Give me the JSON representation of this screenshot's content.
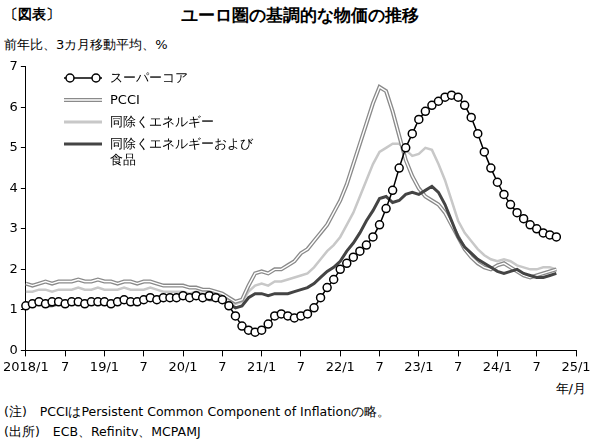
{
  "chart_data": {
    "type": "line",
    "figure_label": "〔図表〕",
    "title": "ユーロ圏の基調的な物価の推移",
    "y_label": "前年比、3カ月移動平均、%",
    "x_label": "年/月",
    "notes": [
      "(注)　PCCIはPersistent Common Component of Inflationの略。",
      "(出所)　ECB、Refinitv、MCPAMJ"
    ],
    "categories": [
      "2018/1",
      null,
      null,
      null,
      null,
      null,
      "7",
      null,
      null,
      null,
      null,
      null,
      "19/1",
      null,
      null,
      null,
      null,
      null,
      "7",
      null,
      null,
      null,
      null,
      null,
      "20/1",
      null,
      null,
      null,
      null,
      null,
      "7",
      null,
      null,
      null,
      null,
      null,
      "21/1",
      null,
      null,
      null,
      null,
      null,
      "7",
      null,
      null,
      null,
      null,
      null,
      "22/1",
      null,
      null,
      null,
      null,
      null,
      "7",
      null,
      null,
      null,
      null,
      null,
      "23/1",
      null,
      null,
      null,
      null,
      null,
      "7",
      null,
      null,
      null,
      null,
      null,
      "24/1",
      null,
      null,
      null,
      null,
      null,
      "7",
      null,
      null,
      null,
      null,
      null,
      "25/1"
    ],
    "series": [
      {
        "name": "スーパーコア",
        "color": "#000000",
        "marker": "circle",
        "line_style": "solid",
        "values": [
          1.1,
          1.15,
          1.2,
          1.15,
          1.2,
          1.2,
          1.15,
          1.2,
          1.2,
          1.15,
          1.2,
          1.2,
          1.2,
          1.15,
          1.2,
          1.25,
          1.2,
          1.2,
          1.25,
          1.3,
          1.25,
          1.3,
          1.3,
          1.3,
          1.35,
          1.3,
          1.35,
          1.3,
          1.35,
          1.3,
          1.25,
          1.1,
          0.85,
          0.6,
          0.5,
          0.45,
          0.5,
          0.65,
          0.85,
          0.9,
          0.85,
          0.8,
          0.85,
          0.9,
          1.05,
          1.3,
          1.55,
          1.75,
          2.0,
          2.15,
          2.3,
          2.45,
          2.6,
          2.8,
          3.1,
          3.5,
          3.95,
          4.5,
          5.0,
          5.35,
          5.7,
          5.9,
          6.05,
          6.15,
          6.25,
          6.3,
          6.25,
          6.05,
          5.75,
          5.35,
          4.9,
          4.5,
          4.15,
          3.85,
          3.6,
          3.4,
          3.25,
          3.1,
          3.0,
          2.9,
          2.85,
          2.8,
          null,
          null,
          null
        ]
      },
      {
        "name": "PCCI",
        "color": "#8a8a8a",
        "line_style": "double",
        "values": [
          1.65,
          1.6,
          1.65,
          1.7,
          1.65,
          1.7,
          1.7,
          1.7,
          1.75,
          1.7,
          1.7,
          1.75,
          1.7,
          1.7,
          1.65,
          1.7,
          1.7,
          1.65,
          1.7,
          1.7,
          1.65,
          1.6,
          1.6,
          1.6,
          1.6,
          1.55,
          1.55,
          1.5,
          1.5,
          1.45,
          1.4,
          1.3,
          1.2,
          1.25,
          1.6,
          1.9,
          1.95,
          1.9,
          2.0,
          2.0,
          2.1,
          2.2,
          2.4,
          2.5,
          2.7,
          2.9,
          3.1,
          3.4,
          3.7,
          4.1,
          4.6,
          5.1,
          5.6,
          6.1,
          6.5,
          6.4,
          5.9,
          5.3,
          4.7,
          4.3,
          4.0,
          3.8,
          3.7,
          3.6,
          3.4,
          3.1,
          2.8,
          2.5,
          2.3,
          2.15,
          2.05,
          2.0,
          2.1,
          2.15,
          2.05,
          1.95,
          1.85,
          1.8,
          1.85,
          1.9,
          1.95,
          2.0,
          null,
          null,
          null
        ]
      },
      {
        "name": "同除くエネルギー",
        "color": "#c8c8c8",
        "line_style": "solid",
        "values": [
          1.45,
          1.45,
          1.5,
          1.5,
          1.45,
          1.5,
          1.5,
          1.5,
          1.55,
          1.5,
          1.5,
          1.55,
          1.5,
          1.5,
          1.5,
          1.55,
          1.5,
          1.5,
          1.5,
          1.55,
          1.5,
          1.45,
          1.45,
          1.45,
          1.45,
          1.4,
          1.45,
          1.4,
          1.4,
          1.35,
          1.35,
          1.25,
          1.15,
          1.2,
          1.45,
          1.6,
          1.65,
          1.6,
          1.7,
          1.7,
          1.75,
          1.8,
          1.85,
          1.9,
          2.05,
          2.25,
          2.45,
          2.6,
          2.8,
          3.1,
          3.4,
          3.8,
          4.2,
          4.6,
          4.9,
          5.0,
          5.1,
          5.1,
          4.95,
          4.8,
          4.85,
          5.0,
          4.95,
          4.6,
          4.2,
          3.7,
          3.2,
          2.9,
          2.7,
          2.5,
          2.35,
          2.25,
          2.2,
          2.25,
          2.2,
          2.1,
          2.05,
          2.0,
          2.0,
          2.05,
          2.05,
          2.0,
          null,
          null,
          null
        ]
      },
      {
        "name": "同除くエネルギーおよび食品",
        "color": "#444444",
        "line_style": "solid",
        "values": [
          1.1,
          1.1,
          1.15,
          1.1,
          1.1,
          1.15,
          1.15,
          1.15,
          1.2,
          1.15,
          1.15,
          1.2,
          1.2,
          1.15,
          1.2,
          1.2,
          1.25,
          1.2,
          1.25,
          1.3,
          1.25,
          1.3,
          1.3,
          1.3,
          1.35,
          1.3,
          1.3,
          1.3,
          1.25,
          1.25,
          1.2,
          1.15,
          1.05,
          1.1,
          1.3,
          1.4,
          1.4,
          1.35,
          1.4,
          1.4,
          1.4,
          1.45,
          1.5,
          1.55,
          1.65,
          1.8,
          1.95,
          2.05,
          2.2,
          2.45,
          2.65,
          2.9,
          3.2,
          3.45,
          3.75,
          3.8,
          3.65,
          3.7,
          3.85,
          3.9,
          3.85,
          3.95,
          4.05,
          3.9,
          3.6,
          3.2,
          2.8,
          2.55,
          2.4,
          2.25,
          2.15,
          2.05,
          1.95,
          1.9,
          1.95,
          2.0,
          1.9,
          1.85,
          1.8,
          1.8,
          1.85,
          1.9,
          null,
          null,
          null
        ]
      }
    ],
    "ylim": [
      0,
      7
    ],
    "yticks": [
      0,
      1,
      2,
      3,
      4,
      5,
      6,
      7
    ],
    "grid": false,
    "legend": "upper left"
  }
}
